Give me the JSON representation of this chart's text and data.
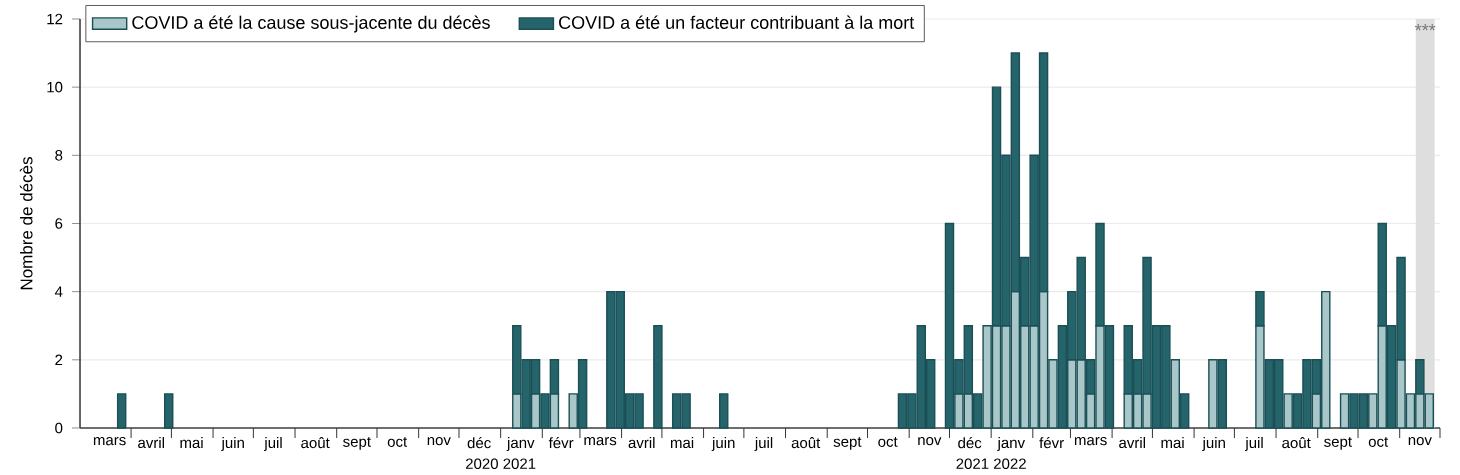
{
  "chart_data": {
    "type": "bar",
    "stacked": true,
    "ylabel": "Nombre de décès",
    "xlim": [
      "2020-02-23",
      "2022-12-01"
    ],
    "ylim": [
      0,
      12
    ],
    "yticks": [
      0,
      2,
      4,
      6,
      8,
      10,
      12
    ],
    "grid": "y",
    "legend": "top left",
    "annotations": [
      "2020 2021",
      "2021 2022"
    ],
    "xticks": [
      {
        "value": "2020-03-16",
        "label": "mars"
      },
      {
        "value": "2020-04-01",
        "label": null
      },
      {
        "value": "2020-04-16",
        "label": "avril"
      },
      {
        "value": "2020-05-01",
        "label": null
      },
      {
        "value": "2020-05-16",
        "label": "mai"
      },
      {
        "value": "2020-06-01",
        "label": null
      },
      {
        "value": "2020-06-16",
        "label": "juin"
      },
      {
        "value": "2020-07-01",
        "label": null
      },
      {
        "value": "2020-07-16",
        "label": "juil"
      },
      {
        "value": "2020-08-01",
        "label": null
      },
      {
        "value": "2020-08-16",
        "label": "août"
      },
      {
        "value": "2020-09-01",
        "label": null
      },
      {
        "value": "2020-09-16",
        "label": "sept"
      },
      {
        "value": "2020-10-01",
        "label": null
      },
      {
        "value": "2020-10-16",
        "label": "oct"
      },
      {
        "value": "2020-11-01",
        "label": null
      },
      {
        "value": "2020-11-16",
        "label": "nov"
      },
      {
        "value": "2020-12-01",
        "label": null
      },
      {
        "value": "2020-12-16",
        "label": "déc"
      },
      {
        "value": "2021-01-01",
        "label": null
      },
      {
        "value": "2021-01-16",
        "label": "janv"
      },
      {
        "value": "2021-02-01",
        "label": null
      },
      {
        "value": "2021-02-15",
        "label": "févr"
      },
      {
        "value": "2021-03-01",
        "label": null
      },
      {
        "value": "2021-03-16",
        "label": "mars"
      },
      {
        "value": "2021-04-01",
        "label": null
      },
      {
        "value": "2021-04-16",
        "label": "avril"
      },
      {
        "value": "2021-05-01",
        "label": null
      },
      {
        "value": "2021-05-16",
        "label": "mai"
      },
      {
        "value": "2021-06-01",
        "label": null
      },
      {
        "value": "2021-06-16",
        "label": "juin"
      },
      {
        "value": "2021-07-01",
        "label": null
      },
      {
        "value": "2021-07-16",
        "label": "juil"
      },
      {
        "value": "2021-08-01",
        "label": null
      },
      {
        "value": "2021-08-16",
        "label": "août"
      },
      {
        "value": "2021-09-01",
        "label": null
      },
      {
        "value": "2021-09-16",
        "label": "sept"
      },
      {
        "value": "2021-10-01",
        "label": null
      },
      {
        "value": "2021-10-16",
        "label": "oct"
      },
      {
        "value": "2021-11-01",
        "label": null
      },
      {
        "value": "2021-11-16",
        "label": "nov"
      },
      {
        "value": "2021-12-01",
        "label": null
      },
      {
        "value": "2021-12-16",
        "label": "déc"
      },
      {
        "value": "2022-01-01",
        "label": null
      },
      {
        "value": "2022-01-16",
        "label": "janv"
      },
      {
        "value": "2022-02-01",
        "label": null
      },
      {
        "value": "2022-02-15",
        "label": "févr"
      },
      {
        "value": "2022-03-01",
        "label": null
      },
      {
        "value": "2022-03-16",
        "label": "mars"
      },
      {
        "value": "2022-04-01",
        "label": null
      },
      {
        "value": "2022-04-16",
        "label": "avril"
      },
      {
        "value": "2022-05-01",
        "label": null
      },
      {
        "value": "2022-05-16",
        "label": "mai"
      },
      {
        "value": "2022-06-01",
        "label": null
      },
      {
        "value": "2022-06-16",
        "label": "juin"
      },
      {
        "value": "2022-07-01",
        "label": null
      },
      {
        "value": "2022-07-16",
        "label": "juil"
      },
      {
        "value": "2022-08-01",
        "label": null
      },
      {
        "value": "2022-08-16",
        "label": "août"
      },
      {
        "value": "2022-09-01",
        "label": null
      },
      {
        "value": "2022-09-16",
        "label": "sept"
      },
      {
        "value": "2022-10-01",
        "label": null
      },
      {
        "value": "2022-10-16",
        "label": "oct"
      },
      {
        "value": "2022-11-01",
        "label": null
      },
      {
        "value": "2022-11-16",
        "label": "nov"
      },
      {
        "value": "2022-12-01",
        "label": null
      }
    ],
    "x": [
      "2020-03-25",
      "2020-04-29",
      "2021-01-13",
      "2021-01-20",
      "2021-01-27",
      "2021-02-03",
      "2021-02-10",
      "2021-02-24",
      "2021-03-03",
      "2021-03-24",
      "2021-03-31",
      "2021-04-07",
      "2021-04-14",
      "2021-04-28",
      "2021-05-12",
      "2021-05-19",
      "2021-06-16",
      "2021-10-27",
      "2021-11-03",
      "2021-11-10",
      "2021-11-17",
      "2021-12-01",
      "2021-12-08",
      "2021-12-15",
      "2021-12-22",
      "2021-12-29",
      "2022-01-05",
      "2022-01-12",
      "2022-01-19",
      "2022-01-26",
      "2022-02-02",
      "2022-02-09",
      "2022-02-16",
      "2022-02-23",
      "2022-03-02",
      "2022-03-09",
      "2022-03-16",
      "2022-03-23",
      "2022-03-30",
      "2022-04-13",
      "2022-04-20",
      "2022-04-27",
      "2022-05-04",
      "2022-05-11",
      "2022-05-18",
      "2022-05-25",
      "2022-06-15",
      "2022-06-22",
      "2022-07-20",
      "2022-07-27",
      "2022-08-03",
      "2022-08-10",
      "2022-08-17",
      "2022-08-24",
      "2022-08-31",
      "2022-09-07",
      "2022-09-21",
      "2022-09-28",
      "2022-10-05",
      "2022-10-12",
      "2022-10-19",
      "2022-10-26",
      "2022-11-02",
      "2022-11-09",
      "2022-11-16",
      "2022-11-23"
    ],
    "series": [
      {
        "name": "COVID a été la cause sous-jacente du décès",
        "color": "#a9c6c8",
        "values": [
          0,
          0,
          1,
          0,
          1,
          0,
          1,
          1,
          0,
          0,
          0,
          0,
          0,
          0,
          0,
          0,
          0,
          0,
          0,
          0,
          0,
          0,
          1,
          1,
          0,
          3,
          3,
          3,
          4,
          3,
          3,
          4,
          2,
          0,
          2,
          2,
          1,
          3,
          0,
          1,
          1,
          1,
          0,
          0,
          2,
          0,
          2,
          0,
          3,
          0,
          0,
          1,
          0,
          0,
          1,
          4,
          1,
          0,
          0,
          1,
          3,
          0,
          2,
          1,
          1,
          1
        ]
      },
      {
        "name": "COVID a été un facteur contribuant à la mort",
        "color": "#26646b",
        "values": [
          1,
          1,
          2,
          2,
          1,
          1,
          1,
          0,
          2,
          4,
          4,
          1,
          1,
          3,
          1,
          1,
          1,
          1,
          1,
          3,
          2,
          6,
          1,
          2,
          1,
          0,
          7,
          5,
          7,
          2,
          5,
          7,
          0,
          3,
          2,
          3,
          1,
          3,
          3,
          2,
          1,
          4,
          3,
          3,
          0,
          1,
          0,
          2,
          1,
          2,
          2,
          0,
          1,
          2,
          1,
          0,
          0,
          1,
          1,
          0,
          3,
          3,
          3,
          0,
          1,
          0
        ]
      }
    ],
    "bands": [
      {
        "axis": "x",
        "from": "2022-11-13",
        "to": "2022-11-27",
        "label": "***",
        "color": "#dedede"
      }
    ]
  }
}
